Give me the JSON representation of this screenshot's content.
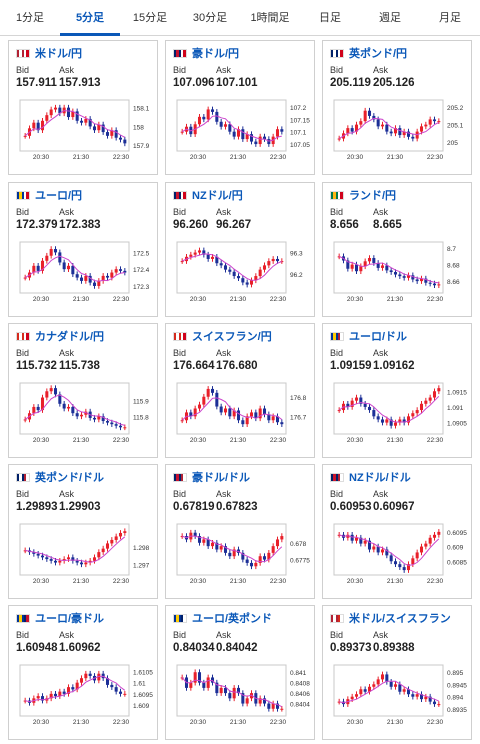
{
  "tabs": [
    {
      "label": "1分足",
      "active": false
    },
    {
      "label": "5分足",
      "active": true
    },
    {
      "label": "15分足",
      "active": false
    },
    {
      "label": "30分足",
      "active": false
    },
    {
      "label": "1時間足",
      "active": false
    },
    {
      "label": "日足",
      "active": false
    },
    {
      "label": "週足",
      "active": false
    },
    {
      "label": "月足",
      "active": false
    }
  ],
  "labels": {
    "bid": "Bid",
    "ask": "Ask"
  },
  "colors": {
    "up": "#e8202a",
    "down": "#1c2f97",
    "ma": "#cc44cc",
    "accent": "#0b58b8"
  },
  "cards": [
    {
      "pair": "米ドル/円",
      "flag": "us-jp",
      "bid": "157.911",
      "ask": "157.913",
      "chart_data": {
        "type": "line",
        "x_ticks": [
          "20:30",
          "21:30",
          "22:30"
        ],
        "y_ticks": [
          "158.1",
          "158",
          "157.9"
        ],
        "ylim": [
          157.88,
          158.13
        ],
        "values": [
          157.95,
          157.99,
          158.02,
          157.98,
          158.03,
          158.06,
          158.09,
          158.1,
          158.07,
          158.1,
          158.05,
          158.08,
          158.03,
          158.02,
          158.04,
          158.0,
          157.98,
          158.01,
          157.97,
          157.95,
          157.98,
          157.94,
          157.93,
          157.91
        ]
      }
    },
    {
      "pair": "豪ドル/円",
      "flag": "au-jp",
      "bid": "107.096",
      "ask": "107.101",
      "chart_data": {
        "type": "line",
        "x_ticks": [
          "20:30",
          "21:30",
          "22:30"
        ],
        "y_ticks": [
          "107.2",
          "107.15",
          "107.1",
          "107.05"
        ],
        "ylim": [
          107.03,
          107.22
        ],
        "values": [
          107.1,
          107.12,
          107.09,
          107.13,
          107.16,
          107.15,
          107.19,
          107.18,
          107.14,
          107.12,
          107.13,
          107.1,
          107.08,
          107.11,
          107.07,
          107.09,
          107.06,
          107.05,
          107.08,
          107.07,
          107.05,
          107.08,
          107.11,
          107.1
        ]
      }
    },
    {
      "pair": "英ポンド/円",
      "flag": "gb-jp",
      "bid": "205.119",
      "ask": "205.126",
      "chart_data": {
        "type": "line",
        "x_ticks": [
          "20:30",
          "21:30",
          "22:30"
        ],
        "y_ticks": [
          "205.2",
          "205.1",
          "205"
        ],
        "ylim": [
          204.96,
          205.23
        ],
        "values": [
          205.02,
          205.05,
          205.08,
          205.06,
          205.1,
          205.12,
          205.18,
          205.15,
          205.13,
          205.09,
          205.1,
          205.06,
          205.05,
          205.08,
          205.04,
          205.06,
          205.03,
          205.02,
          205.06,
          205.09,
          205.1,
          205.13,
          205.12,
          205.12
        ]
      }
    },
    {
      "pair": "ユーロ/円",
      "flag": "eu-jp",
      "bid": "172.379",
      "ask": "172.383",
      "chart_data": {
        "type": "line",
        "x_ticks": [
          "20:30",
          "21:30",
          "22:30"
        ],
        "y_ticks": [
          "172.5",
          "172.4",
          "172.3"
        ],
        "ylim": [
          172.27,
          172.55
        ],
        "values": [
          172.35,
          172.38,
          172.42,
          172.39,
          172.45,
          172.48,
          172.52,
          172.5,
          172.44,
          172.4,
          172.42,
          172.37,
          172.35,
          172.33,
          172.36,
          172.32,
          172.3,
          172.33,
          172.36,
          172.35,
          172.38,
          172.4,
          172.39,
          172.38
        ]
      }
    },
    {
      "pair": "NZドル/円",
      "flag": "nz-jp",
      "bid": "96.260",
      "ask": "96.267",
      "chart_data": {
        "type": "line",
        "x_ticks": [
          "20:30",
          "21:30",
          "22:30"
        ],
        "y_ticks": [
          "96.3",
          "96.2"
        ],
        "ylim": [
          96.12,
          96.34
        ],
        "values": [
          96.26,
          96.28,
          96.29,
          96.3,
          96.31,
          96.29,
          96.27,
          96.28,
          96.25,
          96.24,
          96.22,
          96.21,
          96.19,
          96.18,
          96.16,
          96.15,
          96.17,
          96.19,
          96.22,
          96.24,
          96.26,
          96.27,
          96.26,
          96.26
        ]
      }
    },
    {
      "pair": "ランド/円",
      "flag": "za-jp",
      "bid": "8.656",
      "ask": "8.665",
      "chart_data": {
        "type": "line",
        "x_ticks": [
          "20:30",
          "21:30",
          "22:30"
        ],
        "y_ticks": [
          "8.7",
          "8.68",
          "8.66"
        ],
        "ylim": [
          8.648,
          8.705
        ],
        "values": [
          8.69,
          8.685,
          8.675,
          8.68,
          8.672,
          8.678,
          8.684,
          8.688,
          8.682,
          8.676,
          8.679,
          8.673,
          8.671,
          8.668,
          8.666,
          8.664,
          8.667,
          8.662,
          8.66,
          8.663,
          8.658,
          8.657,
          8.655,
          8.656
        ]
      }
    },
    {
      "pair": "カナダドル/円",
      "flag": "ca-jp",
      "bid": "115.732",
      "ask": "115.738",
      "chart_data": {
        "type": "line",
        "x_ticks": [
          "20:30",
          "21:30",
          "22:30"
        ],
        "y_ticks": [
          "115.9",
          "115.8"
        ],
        "ylim": [
          115.7,
          116.0
        ],
        "values": [
          115.78,
          115.82,
          115.86,
          115.84,
          115.92,
          115.96,
          115.98,
          115.94,
          115.88,
          115.85,
          115.86,
          115.82,
          115.8,
          115.81,
          115.83,
          115.79,
          115.78,
          115.8,
          115.77,
          115.76,
          115.75,
          115.74,
          115.73,
          115.73
        ]
      }
    },
    {
      "pair": "スイスフラン/円",
      "flag": "ch-jp",
      "bid": "176.664",
      "ask": "176.680",
      "chart_data": {
        "type": "line",
        "x_ticks": [
          "20:30",
          "21:30",
          "22:30"
        ],
        "y_ticks": [
          "176.8",
          "176.7"
        ],
        "ylim": [
          176.62,
          176.86
        ],
        "values": [
          176.68,
          176.72,
          176.7,
          176.74,
          176.76,
          176.8,
          176.84,
          176.82,
          176.75,
          176.72,
          176.74,
          176.7,
          176.73,
          176.68,
          176.66,
          176.7,
          176.72,
          176.69,
          176.74,
          176.71,
          176.68,
          176.7,
          176.67,
          176.66
        ]
      }
    },
    {
      "pair": "ユーロ/ドル",
      "flag": "eu-us",
      "bid": "1.09159",
      "ask": "1.09162",
      "chart_data": {
        "type": "line",
        "x_ticks": [
          "20:30",
          "21:30",
          "22:30"
        ],
        "y_ticks": [
          "1.0915",
          "1.091",
          "1.0905"
        ],
        "ylim": [
          1.0902,
          1.0917
        ],
        "values": [
          1.0909,
          1.0911,
          1.091,
          1.0912,
          1.0913,
          1.0911,
          1.091,
          1.0909,
          1.0907,
          1.0906,
          1.0905,
          1.0906,
          1.0904,
          1.0905,
          1.0906,
          1.0905,
          1.0907,
          1.0908,
          1.0909,
          1.0911,
          1.0912,
          1.0913,
          1.0915,
          1.0916
        ]
      }
    },
    {
      "pair": "英ポンド/ドル",
      "flag": "gb-us",
      "bid": "1.29893",
      "ask": "1.29903",
      "chart_data": {
        "type": "line",
        "x_ticks": [
          "20:30",
          "21:30",
          "22:30"
        ],
        "y_ticks": [
          "1.298",
          "1.297"
        ],
        "ylim": [
          1.2965,
          1.2992
        ],
        "values": [
          1.2978,
          1.2977,
          1.2976,
          1.2975,
          1.2974,
          1.2973,
          1.2972,
          1.2971,
          1.2972,
          1.2973,
          1.2974,
          1.2972,
          1.2971,
          1.297,
          1.2971,
          1.2972,
          1.2974,
          1.2977,
          1.2979,
          1.2982,
          1.2984,
          1.2986,
          1.2988,
          1.2989
        ]
      }
    },
    {
      "pair": "豪ドル/ドル",
      "flag": "au-us",
      "bid": "0.67819",
      "ask": "0.67823",
      "chart_data": {
        "type": "line",
        "x_ticks": [
          "20:30",
          "21:30",
          "22:30"
        ],
        "y_ticks": [
          "0.678",
          "0.6775"
        ],
        "ylim": [
          0.6771,
          0.6785
        ],
        "values": [
          0.6782,
          0.6781,
          0.6783,
          0.6782,
          0.678,
          0.6781,
          0.6779,
          0.678,
          0.6778,
          0.6779,
          0.6777,
          0.6776,
          0.6778,
          0.6777,
          0.6775,
          0.6774,
          0.6773,
          0.6774,
          0.6776,
          0.6775,
          0.6777,
          0.6779,
          0.6781,
          0.6782
        ]
      }
    },
    {
      "pair": "NZドル/ドル",
      "flag": "nz-us",
      "bid": "0.60953",
      "ask": "0.60967",
      "chart_data": {
        "type": "line",
        "x_ticks": [
          "20:30",
          "21:30",
          "22:30"
        ],
        "y_ticks": [
          "0.6095",
          "0.609",
          "0.6085"
        ],
        "ylim": [
          0.6081,
          0.6097
        ],
        "values": [
          0.6094,
          0.6093,
          0.6094,
          0.6092,
          0.6093,
          0.6091,
          0.6092,
          0.6089,
          0.609,
          0.6088,
          0.6089,
          0.6087,
          0.6085,
          0.6084,
          0.6083,
          0.6082,
          0.6084,
          0.6086,
          0.6088,
          0.609,
          0.6091,
          0.6093,
          0.6094,
          0.6095
        ]
      }
    },
    {
      "pair": "ユーロ/豪ドル",
      "flag": "eu-au",
      "bid": "1.60948",
      "ask": "1.60962",
      "chart_data": {
        "type": "line",
        "x_ticks": [
          "20:30",
          "21:30",
          "22:30"
        ],
        "y_ticks": [
          "1.6105",
          "1.61",
          "1.6095",
          "1.609"
        ],
        "ylim": [
          1.6086,
          1.6107
        ],
        "values": [
          1.6092,
          1.6091,
          1.6093,
          1.6094,
          1.6092,
          1.6093,
          1.6095,
          1.6094,
          1.6096,
          1.6095,
          1.6098,
          1.6097,
          1.61,
          1.6102,
          1.6104,
          1.6103,
          1.6101,
          1.6104,
          1.6102,
          1.6099,
          1.6098,
          1.6096,
          1.6095,
          1.6095
        ]
      }
    },
    {
      "pair": "ユーロ/英ポンド",
      "flag": "eu-gb",
      "bid": "0.84034",
      "ask": "0.84042",
      "chart_data": {
        "type": "line",
        "x_ticks": [
          "20:30",
          "21:30",
          "22:30"
        ],
        "y_ticks": [
          "0.841",
          "0.8408",
          "0.8406",
          "0.8404"
        ],
        "ylim": [
          0.8402,
          0.8411
        ],
        "values": [
          0.8409,
          0.8407,
          0.8408,
          0.841,
          0.8408,
          0.8407,
          0.8409,
          0.8408,
          0.8406,
          0.8407,
          0.8406,
          0.8405,
          0.8407,
          0.8406,
          0.8404,
          0.8405,
          0.8406,
          0.8404,
          0.8405,
          0.8404,
          0.8403,
          0.8404,
          0.8403,
          0.8403
        ]
      }
    },
    {
      "pair": "米ドル/スイスフラン",
      "flag": "us-ch",
      "bid": "0.89373",
      "ask": "0.89388",
      "chart_data": {
        "type": "line",
        "x_ticks": [
          "20:30",
          "21:30",
          "22:30"
        ],
        "y_ticks": [
          "0.895",
          "0.8945",
          "0.894",
          "0.8935"
        ],
        "ylim": [
          0.8933,
          0.8952
        ],
        "values": [
          0.8938,
          0.8937,
          0.8939,
          0.894,
          0.8941,
          0.8943,
          0.8942,
          0.8944,
          0.8945,
          0.8947,
          0.8949,
          0.8946,
          0.8944,
          0.8945,
          0.8942,
          0.8943,
          0.8941,
          0.894,
          0.8941,
          0.8939,
          0.894,
          0.8938,
          0.8937,
          0.8937
        ]
      }
    }
  ]
}
